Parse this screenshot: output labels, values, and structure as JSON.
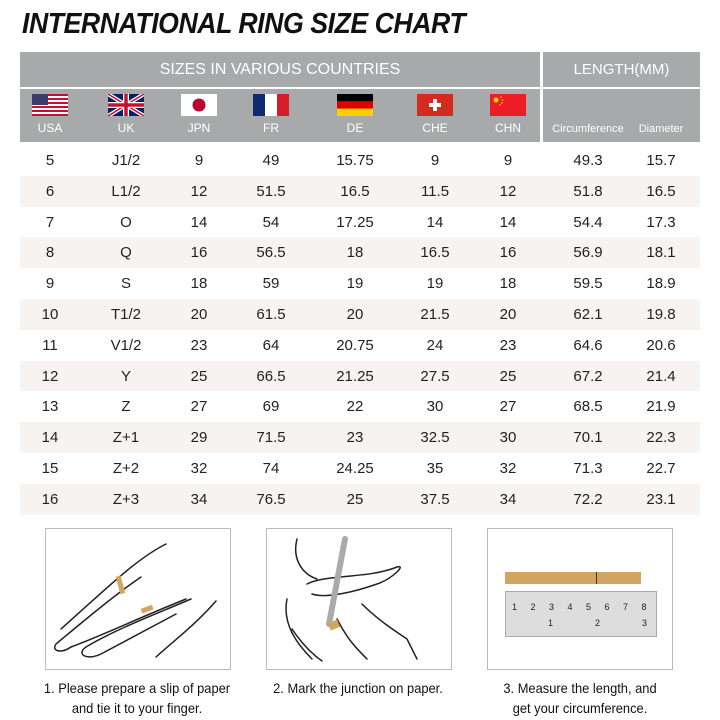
{
  "title": "INTERNATIONAL RING SIZE CHART",
  "header": {
    "sizes_label": "SIZES IN VARIOUS COUNTRIES",
    "length_label": "LENGTH(MM)",
    "countries": [
      {
        "code": "USA",
        "flag": "us-flag-icon"
      },
      {
        "code": "UK",
        "flag": "uk-flag-icon"
      },
      {
        "code": "JPN",
        "flag": "japan-flag-icon"
      },
      {
        "code": "FR",
        "flag": "france-flag-icon"
      },
      {
        "code": "DE",
        "flag": "germany-flag-icon"
      },
      {
        "code": "CHE",
        "flag": "switzerland-flag-icon"
      },
      {
        "code": "CHN",
        "flag": "china-flag-icon"
      }
    ],
    "length_cols": [
      "Circumference",
      "Diameter"
    ]
  },
  "rows": [
    [
      "5",
      "J1/2",
      "9",
      "49",
      "15.75",
      "9",
      "9",
      "49.3",
      "15.7"
    ],
    [
      "6",
      "L1/2",
      "12",
      "51.5",
      "16.5",
      "11.5",
      "12",
      "51.8",
      "16.5"
    ],
    [
      "7",
      "O",
      "14",
      "54",
      "17.25",
      "14",
      "14",
      "54.4",
      "17.3"
    ],
    [
      "8",
      "Q",
      "16",
      "56.5",
      "18",
      "16.5",
      "16",
      "56.9",
      "18.1"
    ],
    [
      "9",
      "S",
      "18",
      "59",
      "19",
      "19",
      "18",
      "59.5",
      "18.9"
    ],
    [
      "10",
      "T1/2",
      "20",
      "61.5",
      "20",
      "21.5",
      "20",
      "62.1",
      "19.8"
    ],
    [
      "11",
      "V1/2",
      "23",
      "64",
      "20.75",
      "24",
      "23",
      "64.6",
      "20.6"
    ],
    [
      "12",
      "Y",
      "25",
      "66.5",
      "21.25",
      "27.5",
      "25",
      "67.2",
      "21.4"
    ],
    [
      "13",
      "Z",
      "27",
      "69",
      "22",
      "30",
      "27",
      "68.5",
      "21.9"
    ],
    [
      "14",
      "Z+1",
      "29",
      "71.5",
      "23",
      "32.5",
      "30",
      "70.1",
      "22.3"
    ],
    [
      "15",
      "Z+2",
      "32",
      "74",
      "24.25",
      "35",
      "32",
      "71.3",
      "22.7"
    ],
    [
      "16",
      "Z+3",
      "34",
      "76.5",
      "25",
      "37.5",
      "34",
      "72.2",
      "23.1"
    ]
  ],
  "steps": [
    {
      "line1": "1. Please prepare a slip of paper",
      "line2": "and tie it to your finger."
    },
    {
      "line1": "2. Mark the junction on paper.",
      "line2": ""
    },
    {
      "line1": "3. Measure the length, and",
      "line2": "get your circumference."
    }
  ],
  "ruler": {
    "top_marks": [
      "1",
      "2",
      "3",
      "4",
      "5",
      "6",
      "7",
      "8"
    ],
    "bottom_marks": [
      "1",
      "2",
      "3"
    ]
  },
  "colors": {
    "header_bg": "#a8a9ab",
    "row_alt": "#f6f3f0",
    "paper": "#d2a660"
  }
}
